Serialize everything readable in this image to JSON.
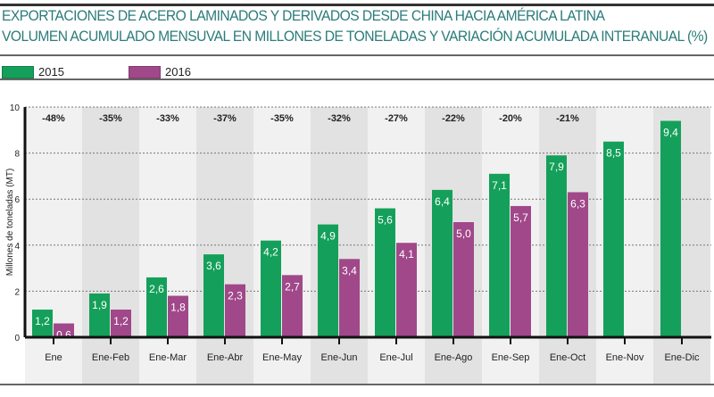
{
  "chart_data": {
    "type": "bar",
    "title": "EXPORTACIONES DE ACERO LAMINADOS Y DERIVADOS DESDE CHINA HACIA AMÉRICA LATINA",
    "subtitle": "VOLUMEN ACUMULADO MENSUVAL EN MILLONES DE TONELADAS Y VARIACIÓN ACUMULADA INTERANUAL (%)",
    "ylabel": "Millones de toneladas (MT)",
    "xlabel": "",
    "ylim": [
      0,
      10
    ],
    "yticks": [
      0,
      2,
      4,
      6,
      8,
      10
    ],
    "grid": true,
    "legend_position": "top-left",
    "categories": [
      "Ene",
      "Ene-Feb",
      "Ene-Mar",
      "Ene-Abr",
      "Ene-May",
      "Ene-Jun",
      "Ene-Jul",
      "Ene-Ago",
      "Ene-Sep",
      "Ene-Oct",
      "Ene-Nov",
      "Ene-Dic"
    ],
    "series": [
      {
        "name": "2015",
        "color": "#14a05a",
        "values": [
          1.2,
          1.9,
          2.6,
          3.6,
          4.2,
          4.9,
          5.6,
          6.4,
          7.1,
          7.9,
          8.5,
          9.4
        ],
        "labels": [
          "1,2",
          "1,9",
          "2,6",
          "3,6",
          "4,2",
          "4,9",
          "5,6",
          "6,4",
          "7,1",
          "7,9",
          "8,5",
          "9,4"
        ]
      },
      {
        "name": "2016",
        "color": "#a0488a",
        "values": [
          0.6,
          1.2,
          1.8,
          2.3,
          2.7,
          3.4,
          4.1,
          5.0,
          5.7,
          6.3,
          null,
          null
        ],
        "labels": [
          "0,6",
          "1,2",
          "1,8",
          "2,3",
          "2,7",
          "3,4",
          "4,1",
          "5,0",
          "5,7",
          "6,3",
          null,
          null
        ]
      }
    ],
    "annotations": [
      "-48%",
      "-35%",
      "-33%",
      "-37%",
      "-35%",
      "-32%",
      "-27%",
      "-22%",
      "-20%",
      "-21%",
      "",
      ""
    ]
  }
}
